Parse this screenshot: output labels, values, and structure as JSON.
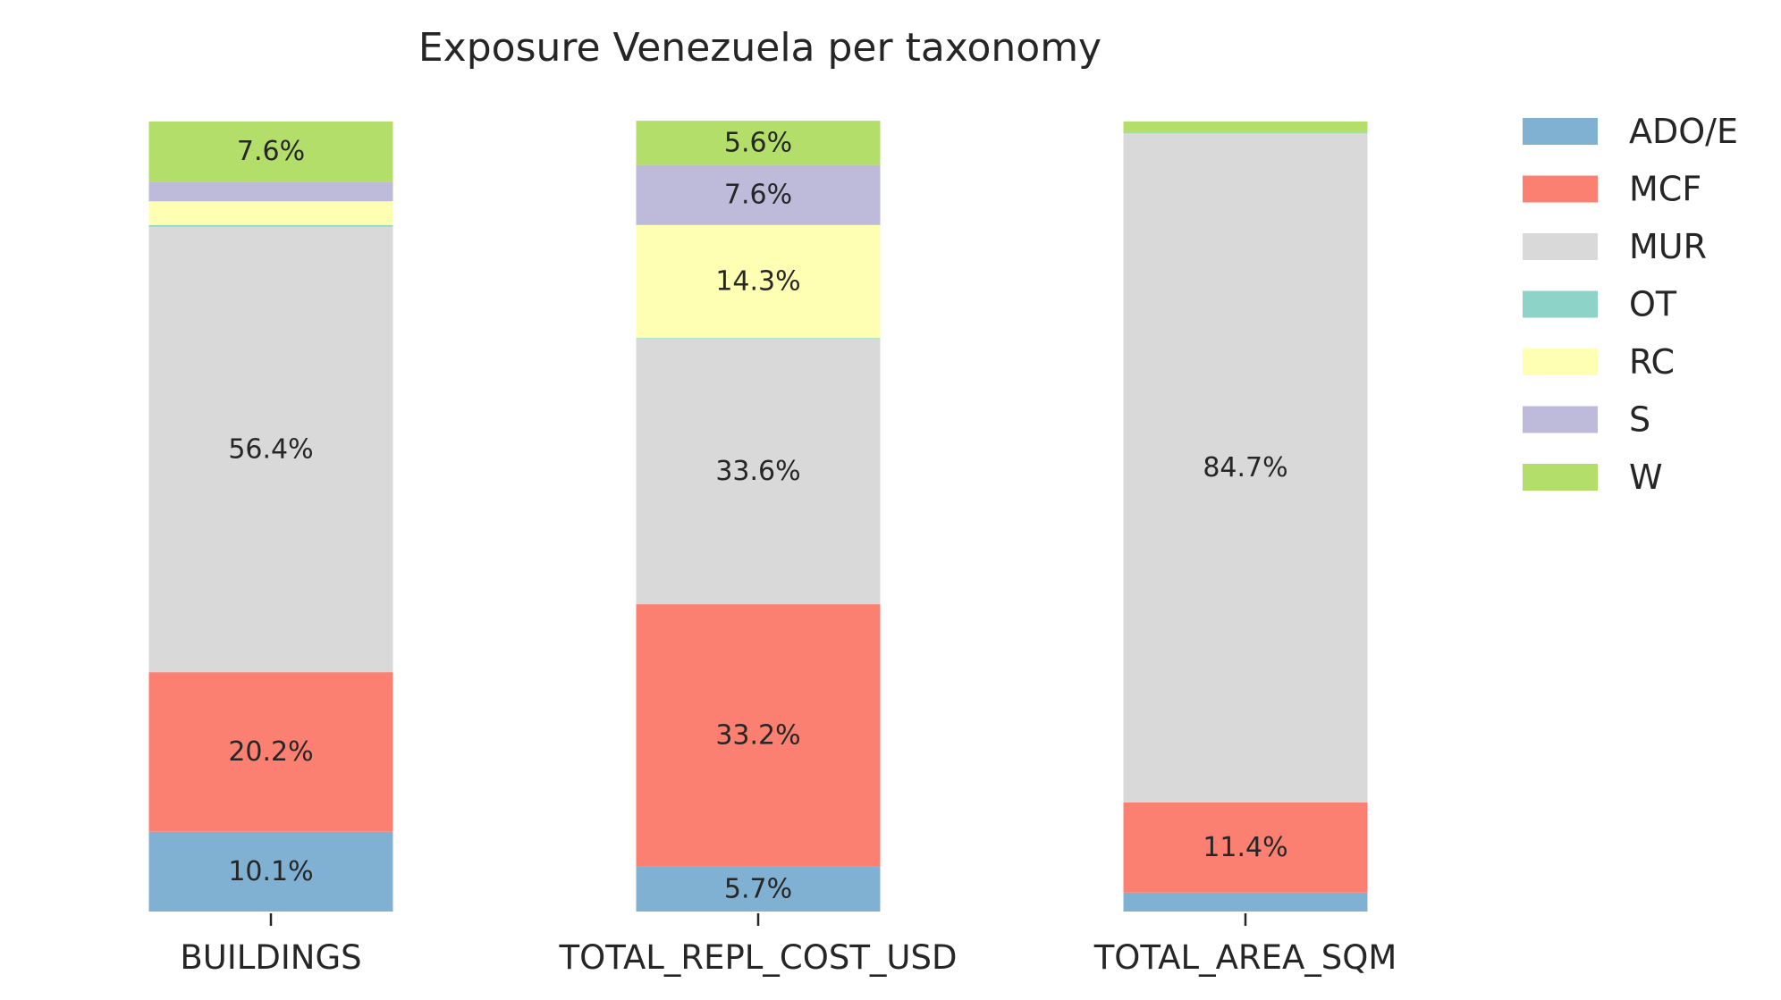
{
  "chart_data": {
    "type": "bar",
    "stacked": true,
    "normalized": true,
    "title": "Exposure Venezuela per taxonomy",
    "xlabel": "",
    "ylabel": "",
    "ylim": [
      0,
      1
    ],
    "grid": false,
    "legend_position": "top-right",
    "categories": [
      "BUILDINGS",
      "TOTAL_REPL_COST_USD",
      "TOTAL_AREA_SQM"
    ],
    "series": [
      {
        "name": "ADO/E",
        "color": "#80b1d3",
        "values": [
          0.101,
          0.057,
          0.024
        ],
        "labels": [
          "10.1%",
          "5.7%",
          ""
        ]
      },
      {
        "name": "MCF",
        "color": "#fb8072",
        "values": [
          0.202,
          0.332,
          0.114
        ],
        "labels": [
          "20.2%",
          "33.2%",
          "11.4%"
        ]
      },
      {
        "name": "MUR",
        "color": "#d9d9d9",
        "values": [
          0.564,
          0.336,
          0.847
        ],
        "labels": [
          "56.4%",
          "33.6%",
          "84.7%"
        ]
      },
      {
        "name": "OT",
        "color": "#8dd3c7",
        "values": [
          0.002,
          0.001,
          0.001
        ],
        "labels": [
          "",
          "",
          ""
        ]
      },
      {
        "name": "RC",
        "color": "#ffffb3",
        "values": [
          0.03,
          0.143,
          0.0
        ],
        "labels": [
          "",
          "14.3%",
          ""
        ]
      },
      {
        "name": "S",
        "color": "#bebada",
        "values": [
          0.025,
          0.076,
          0.0
        ],
        "labels": [
          "",
          "7.6%",
          ""
        ]
      },
      {
        "name": "W",
        "color": "#b3de69",
        "values": [
          0.076,
          0.056,
          0.014
        ],
        "labels": [
          "7.6%",
          "5.6%",
          ""
        ]
      }
    ]
  }
}
